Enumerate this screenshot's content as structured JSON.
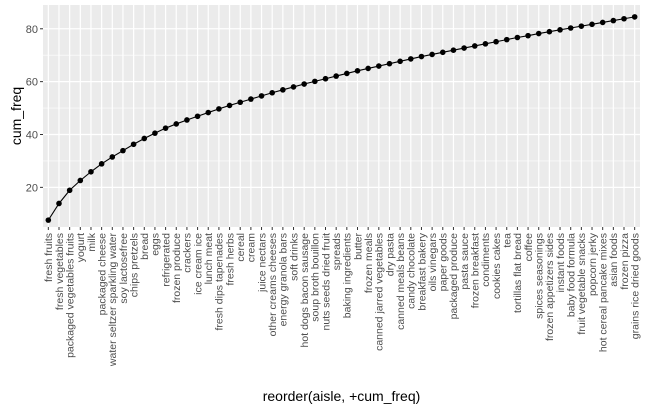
{
  "chart_data": {
    "type": "line",
    "xlabel": "reorder(aisle, +cum_freq)",
    "ylabel": "cum_freq",
    "ylim": [
      5,
      89
    ],
    "yticks": [
      20,
      40,
      60,
      80
    ],
    "grid": true,
    "panel_background": "#ebebeb",
    "gridline_color": "#ffffff",
    "point_color": "#000000",
    "categories": [
      "fresh fruits",
      "fresh vegetables",
      "packaged vegetables fruits",
      "yogurt",
      "milk",
      "packaged cheese",
      "water seltzer sparkling water",
      "soy lactosefree",
      "chips pretzels",
      "bread",
      "eggs",
      "refrigerated",
      "frozen produce",
      "crackers",
      "ice cream ice",
      "lunch meat",
      "fresh dips tapenades",
      "fresh herbs",
      "cereal",
      "cream",
      "juice nectars",
      "other creams cheeses",
      "energy granola bars",
      "soft drinks",
      "hot dogs bacon sausage",
      "soup broth bouillon",
      "nuts seeds dried fruit",
      "spreads",
      "baking ingredients",
      "butter",
      "frozen meals",
      "canned jarred vegetables",
      "dry pasta",
      "canned meals beans",
      "candy chocolate",
      "breakfast bakery",
      "oils vinegars",
      "paper goods",
      "packaged produce",
      "pasta sauce",
      "frozen breakfast",
      "condiments",
      "cookies cakes",
      "tea",
      "tortillas flat bread",
      "coffee",
      "spices seasonings",
      "frozen appetizers sides",
      "instant foods",
      "baby food formula",
      "fruit vegetable snacks",
      "popcorn jerky",
      "hot cereal pancake mixes",
      "asian foods",
      "frozen pizza",
      "grains rice dried goods"
    ],
    "values": [
      7.6,
      13.9,
      18.9,
      22.6,
      25.9,
      28.9,
      31.5,
      33.9,
      36.3,
      38.5,
      40.5,
      42.4,
      44.0,
      45.5,
      46.9,
      48.3,
      49.7,
      51.0,
      52.2,
      53.4,
      54.6,
      55.8,
      56.9,
      58.0,
      59.1,
      60.1,
      61.1,
      62.1,
      63.1,
      64.1,
      65.0,
      65.9,
      66.8,
      67.7,
      68.6,
      69.5,
      70.3,
      71.1,
      71.9,
      72.7,
      73.5,
      74.3,
      75.1,
      75.9,
      76.7,
      77.4,
      78.2,
      78.9,
      79.6,
      80.3,
      81.0,
      81.7,
      82.4,
      83.1,
      83.8,
      84.5
    ]
  }
}
